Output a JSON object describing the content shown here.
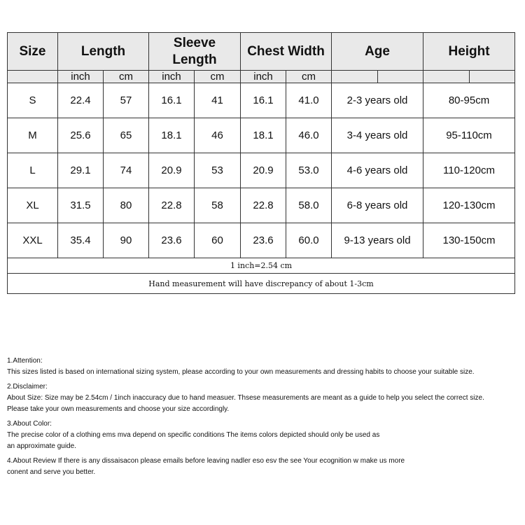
{
  "table": {
    "headers": [
      "Size",
      "Length",
      "Sleeve Length",
      "Chest Width",
      "Age",
      "Height"
    ],
    "units": [
      "inch",
      "cm",
      "inch",
      "cm",
      "inch",
      "cm"
    ],
    "rows": [
      [
        "S",
        "22.4",
        "57",
        "16.1",
        "41",
        "16.1",
        "41.0",
        "2-3 years old",
        "80-95cm"
      ],
      [
        "M",
        "25.6",
        "65",
        "18.1",
        "46",
        "18.1",
        "46.0",
        "3-4 years old",
        "95-110cm"
      ],
      [
        "L",
        "29.1",
        "74",
        "20.9",
        "53",
        "20.9",
        "53.0",
        "4-6 years old",
        "110-120cm"
      ],
      [
        "XL",
        "31.5",
        "80",
        "22.8",
        "58",
        "22.8",
        "58.0",
        "6-8 years old",
        "120-130cm"
      ],
      [
        "XXL",
        "35.4",
        "90",
        "23.6",
        "60",
        "23.6",
        "60.0",
        "9-13 years old",
        "130-150cm"
      ]
    ],
    "conversion": "1 inch=2.54 cm",
    "discrepancy": "Hand measurement will have discrepancy of about 1-3cm"
  },
  "notes": [
    {
      "title": "1.Attention:",
      "lines": [
        "This sizes listed is based on international sizing system, please according to your own measurements and dressing habits to choose your suitable size."
      ]
    },
    {
      "title": "2.Disclaimer:",
      "lines": [
        "About Size: Size may be 2.54cm / 1inch inaccuracy due to hand measuer. Thsese measurements are meant as a guide to help you select the correct size.",
        "Please take your own measurements and choose your size accordingly."
      ]
    },
    {
      "title": "3.About Color:",
      "lines": [
        "The precise color of a clothing ems mva depend on specific conditions The items colors depicted should only be used as",
        "an approximate guide."
      ]
    },
    {
      "title": "4.About Review If there is any dissaisacon please emails before leaving nadler eso esv the see Your ecognition w make us more",
      "lines": [
        "conent and serve you better."
      ]
    }
  ]
}
